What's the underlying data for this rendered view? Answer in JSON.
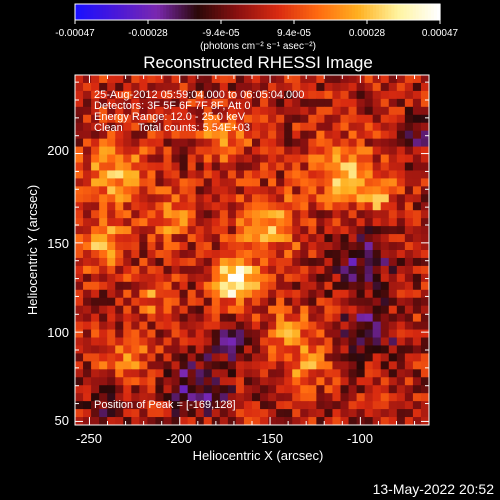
{
  "chart_data": {
    "type": "heatmap",
    "title": "Reconstructed RHESSI Image",
    "xlabel": "Heliocentric X (arcsec)",
    "ylabel": "Heliocentric Y (arcsec)",
    "xlim": [
      -258,
      -62
    ],
    "ylim": [
      48,
      244
    ],
    "x_ticks": [
      -250,
      -200,
      -150,
      -100
    ],
    "y_ticks": [
      50,
      100,
      150,
      200
    ],
    "peak_position": [
      -169,
      128
    ],
    "colorbar": {
      "range": [
        -0.00047,
        0.00047
      ],
      "ticks": [
        "-0.00047",
        "-0.00028",
        "-9.4e-05",
        "9.4e-05",
        "0.00028",
        "0.00047"
      ],
      "unit_label": "(photons cm⁻² s⁻¹ asec⁻²)",
      "colors": [
        "#1a10ff",
        "#4a18d8",
        "#7a28b0",
        "#2a0808",
        "#8a1010",
        "#d82a10",
        "#ff6a10",
        "#ffb020",
        "#fff4a0",
        "#ffffff"
      ]
    },
    "sources": [
      {
        "x": -169,
        "y": 128,
        "sigma": 8,
        "amplitude": 1.0
      },
      {
        "x": -235,
        "y": 190,
        "sigma": 12,
        "amplitude": 0.55
      },
      {
        "x": -242,
        "y": 150,
        "sigma": 10,
        "amplitude": 0.5
      },
      {
        "x": -205,
        "y": 165,
        "sigma": 9,
        "amplitude": 0.45
      },
      {
        "x": -150,
        "y": 160,
        "sigma": 12,
        "amplitude": 0.5
      },
      {
        "x": -110,
        "y": 190,
        "sigma": 12,
        "amplitude": 0.55
      },
      {
        "x": -90,
        "y": 175,
        "sigma": 8,
        "amplitude": 0.45
      },
      {
        "x": -175,
        "y": 210,
        "sigma": 10,
        "amplitude": 0.4
      },
      {
        "x": -140,
        "y": 100,
        "sigma": 9,
        "amplitude": 0.45
      },
      {
        "x": -130,
        "y": 80,
        "sigma": 8,
        "amplitude": 0.4
      },
      {
        "x": -230,
        "y": 85,
        "sigma": 10,
        "amplitude": 0.35
      },
      {
        "x": -215,
        "y": 120,
        "sigma": 8,
        "amplitude": 0.35
      },
      {
        "x": -95,
        "y": 100,
        "sigma": 10,
        "amplitude": -0.45
      },
      {
        "x": -100,
        "y": 140,
        "sigma": 12,
        "amplitude": -0.4
      },
      {
        "x": -190,
        "y": 70,
        "sigma": 12,
        "amplitude": -0.45
      },
      {
        "x": -240,
        "y": 60,
        "sigma": 8,
        "amplitude": -0.3
      },
      {
        "x": -70,
        "y": 210,
        "sigma": 8,
        "amplitude": -0.3
      },
      {
        "x": -170,
        "y": 95,
        "sigma": 8,
        "amplitude": -0.3
      }
    ]
  },
  "info": {
    "line1": "25-Aug-2012 05:59:04.000 to 06:05:04.000",
    "line2": "Detectors: 3F 5F 6F 7F 8F, Att 0",
    "line3": "Energy Range: 12.0 - 25.0 keV",
    "line4": "Clean     Total counts: 5.54E+03",
    "peak": "Position of Peak = [-169,128]"
  },
  "footer": {
    "timestamp": "13-May-2022 20:52"
  }
}
